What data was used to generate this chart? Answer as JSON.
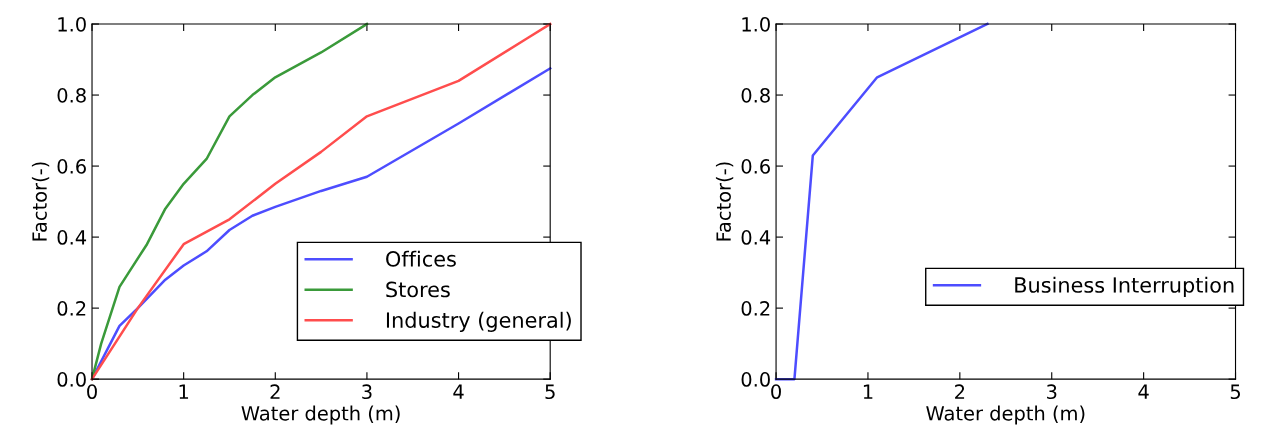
{
  "chart_data": [
    {
      "type": "line",
      "xlabel": "Water depth (m)",
      "ylabel": "Factor(-)",
      "xlim": [
        0,
        5
      ],
      "ylim": [
        0,
        1.0
      ],
      "xticks": [
        0,
        1,
        2,
        3,
        4,
        5
      ],
      "yticks": [
        {
          "value": 0,
          "label": "0.0"
        },
        {
          "value": 0.2,
          "label": "0.2"
        },
        {
          "value": 0.4,
          "label": "0.4"
        },
        {
          "value": 0.6,
          "label": "0.6"
        },
        {
          "value": 0.8,
          "label": "0.8"
        },
        {
          "value": 1.0,
          "label": "1.0"
        }
      ],
      "grid": false,
      "legend": "bottom right",
      "series": [
        {
          "name": "Offices",
          "color": "#4d4dff",
          "x": [
            0,
            0.3,
            0.5,
            0.8,
            1,
            1.25,
            1.5,
            1.75,
            2,
            2.5,
            3,
            4,
            5
          ],
          "values": [
            0,
            0.15,
            0.2,
            0.28,
            0.32,
            0.36,
            0.42,
            0.46,
            0.485,
            0.53,
            0.57,
            0.72,
            0.875
          ]
        },
        {
          "name": "Stores",
          "color": "#3a9a3a",
          "x": [
            0,
            0.1,
            0.3,
            0.4,
            0.6,
            0.8,
            1,
            1.25,
            1.5,
            1.75,
            2,
            2.5,
            3
          ],
          "values": [
            0,
            0.1,
            0.26,
            0.3,
            0.38,
            0.48,
            0.55,
            0.62,
            0.74,
            0.8,
            0.85,
            0.92,
            1.0
          ]
        },
        {
          "name": "Industry (general)",
          "color": "#ff4d4d",
          "x": [
            0,
            0.5,
            1,
            1.5,
            2,
            2.5,
            3,
            4,
            4.75,
            5
          ],
          "values": [
            0,
            0.2,
            0.38,
            0.45,
            0.55,
            0.64,
            0.74,
            0.84,
            0.96,
            1.0
          ]
        }
      ]
    },
    {
      "type": "line",
      "xlabel": "Water depth (m)",
      "ylabel": "Factor(-)",
      "xlim": [
        0,
        5
      ],
      "ylim": [
        0,
        1.0
      ],
      "xticks": [
        0,
        1,
        2,
        3,
        4,
        5
      ],
      "yticks": [
        {
          "value": 0,
          "label": "0.0"
        },
        {
          "value": 0.2,
          "label": "0.2"
        },
        {
          "value": 0.4,
          "label": "0.4"
        },
        {
          "value": 0.6,
          "label": "0.6"
        },
        {
          "value": 0.8,
          "label": "0.8"
        },
        {
          "value": 1.0,
          "label": "1.0"
        }
      ],
      "grid": false,
      "legend": "right",
      "series": [
        {
          "name": "Business Interruption",
          "color": "#4d4dff",
          "x": [
            0,
            0.2,
            0.4,
            1.1,
            2.3
          ],
          "values": [
            0,
            0,
            0.63,
            0.85,
            1.0
          ]
        }
      ]
    }
  ]
}
